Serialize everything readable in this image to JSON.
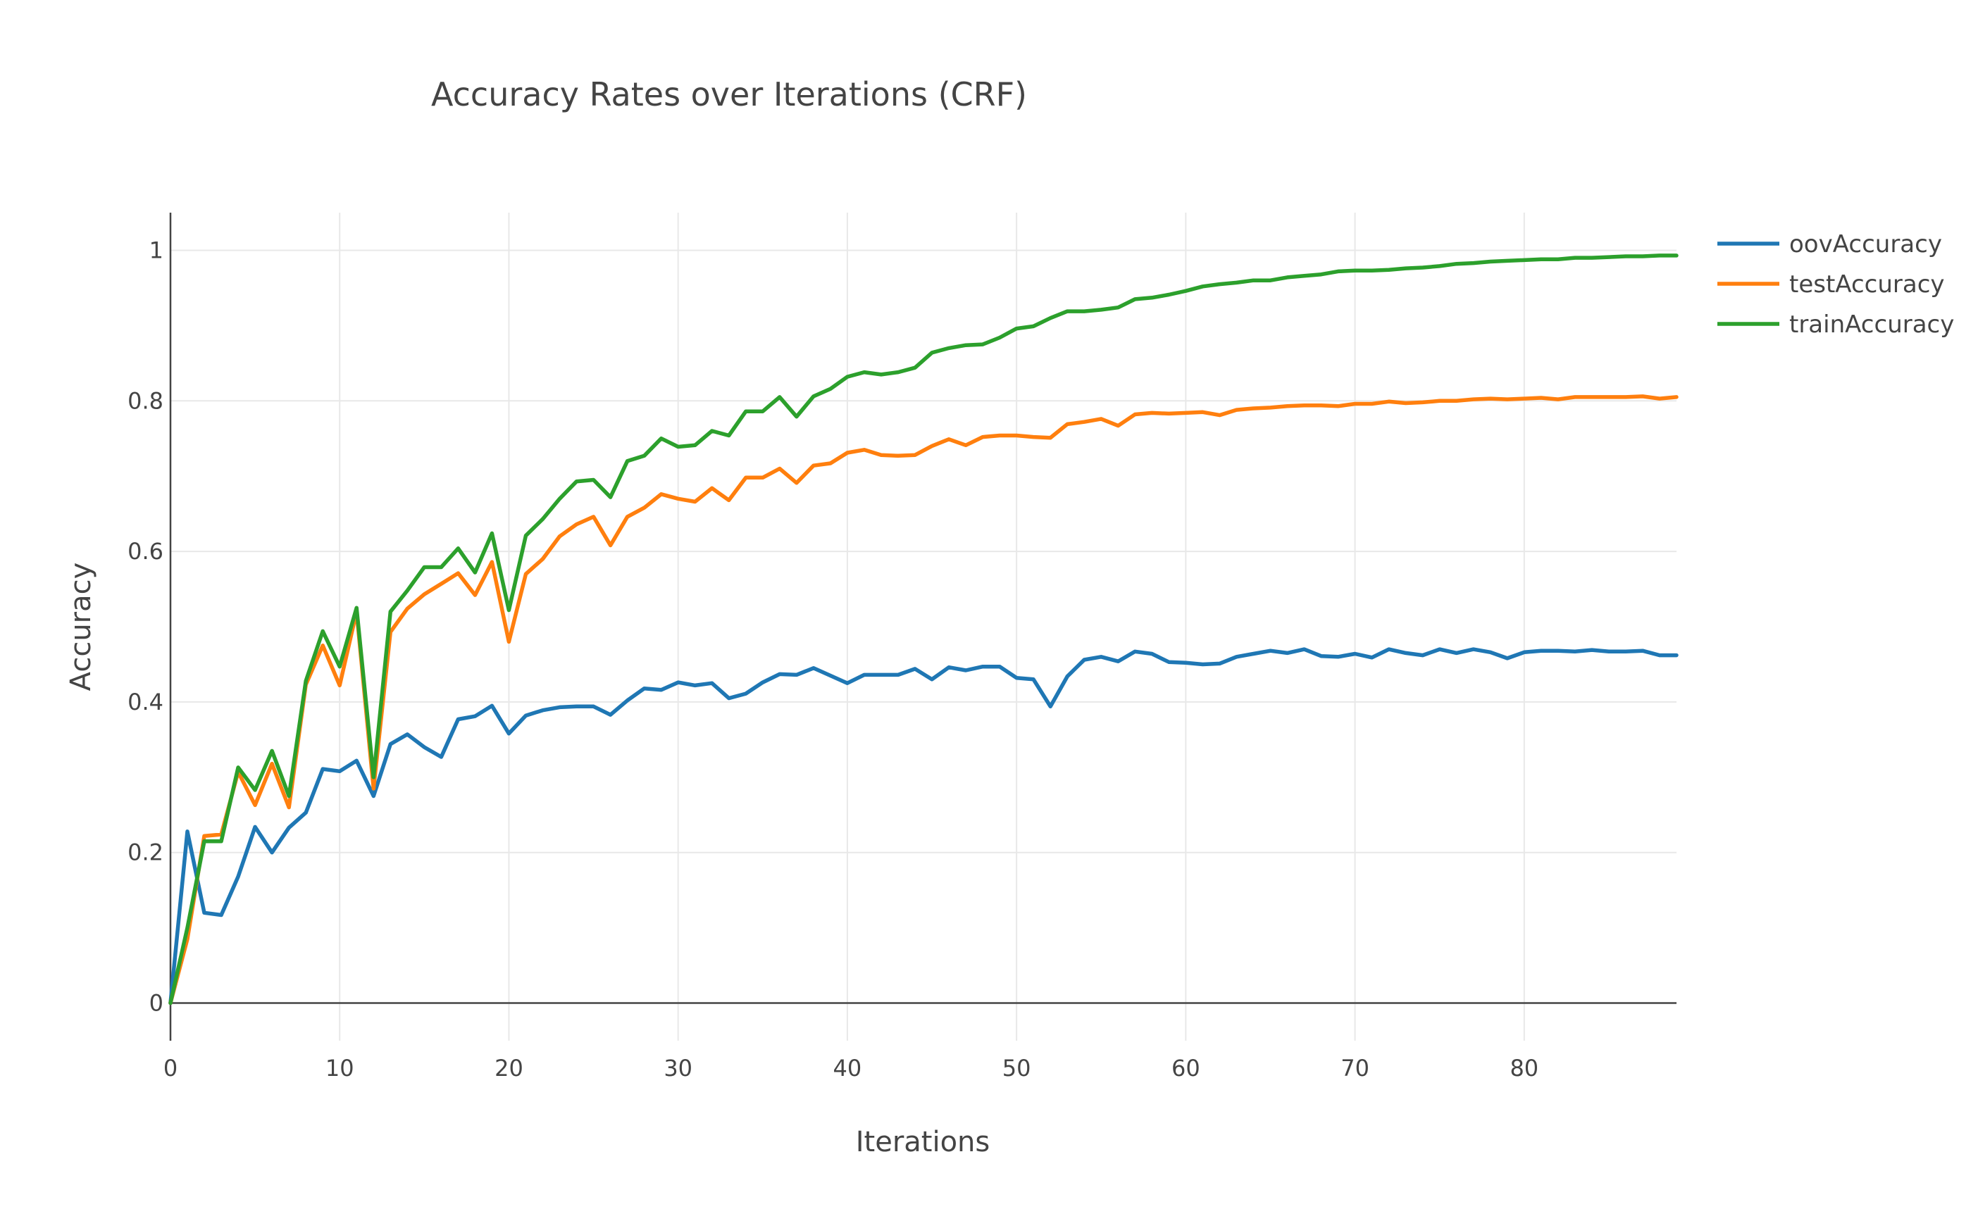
{
  "chart_data": {
    "type": "line",
    "title": "Accuracy Rates over Iterations (CRF)",
    "xlabel": "Iterations",
    "ylabel": "Accuracy",
    "xlim": [
      0,
      89
    ],
    "ylim": [
      -0.05,
      1.05
    ],
    "xticks": [
      0,
      10,
      20,
      30,
      40,
      50,
      60,
      70,
      80
    ],
    "yticks": [
      0,
      0.2,
      0.4,
      0.6,
      0.8,
      1
    ],
    "xtick_labels": [
      "0",
      "10",
      "20",
      "30",
      "40",
      "50",
      "60",
      "70",
      "80"
    ],
    "ytick_labels": [
      "0",
      "0.2",
      "0.4",
      "0.6",
      "0.8",
      "1"
    ],
    "grid": true,
    "legend_position": "top-right",
    "x": [
      0,
      1,
      2,
      3,
      4,
      5,
      6,
      7,
      8,
      9,
      10,
      11,
      12,
      13,
      14,
      15,
      16,
      17,
      18,
      19,
      20,
      21,
      22,
      23,
      24,
      25,
      26,
      27,
      28,
      29,
      30,
      31,
      32,
      33,
      34,
      35,
      36,
      37,
      38,
      39,
      40,
      41,
      42,
      43,
      44,
      45,
      46,
      47,
      48,
      49,
      50,
      51,
      52,
      53,
      54,
      55,
      56,
      57,
      58,
      59,
      60,
      61,
      62,
      63,
      64,
      65,
      66,
      67,
      68,
      69,
      70,
      71,
      72,
      73,
      74,
      75,
      76,
      77,
      78,
      79,
      80,
      81,
      82,
      83,
      84,
      85,
      86,
      87,
      88,
      89
    ],
    "series": [
      {
        "name": "oovAccuracy",
        "color": "#1f77b4",
        "values": [
          0.0,
          0.228,
          0.12,
          0.117,
          0.168,
          0.234,
          0.2,
          0.233,
          0.253,
          0.311,
          0.308,
          0.322,
          0.275,
          0.344,
          0.357,
          0.34,
          0.327,
          0.377,
          0.381,
          0.395,
          0.358,
          0.382,
          0.389,
          0.393,
          0.394,
          0.394,
          0.383,
          0.402,
          0.418,
          0.416,
          0.426,
          0.422,
          0.425,
          0.405,
          0.411,
          0.426,
          0.437,
          0.436,
          0.445,
          0.435,
          0.425,
          0.436,
          0.436,
          0.436,
          0.444,
          0.43,
          0.446,
          0.442,
          0.447,
          0.447,
          0.432,
          0.43,
          0.394,
          0.434,
          0.456,
          0.46,
          0.454,
          0.467,
          0.464,
          0.453,
          0.452,
          0.45,
          0.451,
          0.46,
          0.464,
          0.468,
          0.465,
          0.47,
          0.461,
          0.46,
          0.464,
          0.459,
          0.47,
          0.465,
          0.462,
          0.47,
          0.465,
          0.47,
          0.466,
          0.458,
          0.466,
          0.468,
          0.468,
          0.467,
          0.469,
          0.467,
          0.467,
          0.468,
          0.462,
          0.462
        ]
      },
      {
        "name": "testAccuracy",
        "color": "#ff7f0e",
        "values": [
          0.0,
          0.085,
          0.222,
          0.224,
          0.307,
          0.263,
          0.318,
          0.26,
          0.423,
          0.475,
          0.422,
          0.52,
          0.285,
          0.493,
          0.524,
          0.543,
          0.557,
          0.571,
          0.542,
          0.586,
          0.48,
          0.57,
          0.59,
          0.62,
          0.636,
          0.646,
          0.608,
          0.646,
          0.658,
          0.676,
          0.67,
          0.666,
          0.684,
          0.668,
          0.698,
          0.698,
          0.71,
          0.691,
          0.714,
          0.717,
          0.731,
          0.735,
          0.728,
          0.727,
          0.728,
          0.74,
          0.749,
          0.741,
          0.752,
          0.754,
          0.754,
          0.752,
          0.751,
          0.769,
          0.772,
          0.776,
          0.767,
          0.782,
          0.784,
          0.783,
          0.784,
          0.785,
          0.781,
          0.788,
          0.79,
          0.791,
          0.793,
          0.794,
          0.794,
          0.793,
          0.796,
          0.796,
          0.799,
          0.797,
          0.798,
          0.8,
          0.8,
          0.802,
          0.803,
          0.802,
          0.803,
          0.804,
          0.802,
          0.805,
          0.805,
          0.805,
          0.805,
          0.806,
          0.803,
          0.805
        ]
      },
      {
        "name": "trainAccuracy",
        "color": "#2ca02c",
        "values": [
          0.0,
          0.1,
          0.215,
          0.215,
          0.313,
          0.283,
          0.335,
          0.275,
          0.428,
          0.494,
          0.447,
          0.525,
          0.3,
          0.52,
          0.548,
          0.579,
          0.579,
          0.604,
          0.572,
          0.624,
          0.522,
          0.621,
          0.643,
          0.67,
          0.693,
          0.695,
          0.672,
          0.72,
          0.727,
          0.75,
          0.739,
          0.741,
          0.76,
          0.754,
          0.786,
          0.786,
          0.805,
          0.779,
          0.806,
          0.816,
          0.832,
          0.838,
          0.835,
          0.838,
          0.844,
          0.864,
          0.87,
          0.874,
          0.875,
          0.884,
          0.896,
          0.899,
          0.91,
          0.919,
          0.919,
          0.921,
          0.924,
          0.935,
          0.937,
          0.941,
          0.946,
          0.952,
          0.955,
          0.957,
          0.96,
          0.96,
          0.964,
          0.966,
          0.968,
          0.972,
          0.973,
          0.973,
          0.974,
          0.976,
          0.977,
          0.979,
          0.982,
          0.983,
          0.985,
          0.986,
          0.987,
          0.988,
          0.988,
          0.99,
          0.99,
          0.991,
          0.992,
          0.992,
          0.993,
          0.993
        ]
      }
    ]
  }
}
